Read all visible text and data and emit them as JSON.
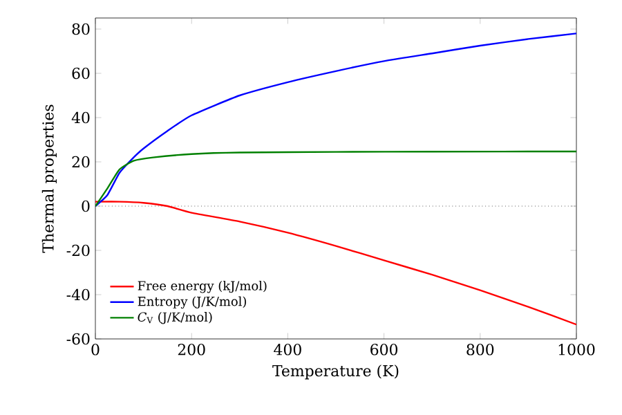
{
  "chart_data": {
    "type": "line",
    "xlabel": "Temperature (K)",
    "ylabel": "Thermal properties",
    "xlim": [
      0,
      1000
    ],
    "ylim": [
      -60,
      85
    ],
    "xticks": [
      0,
      200,
      400,
      600,
      800,
      1000
    ],
    "yticks": [
      -60,
      -40,
      -20,
      0,
      20,
      40,
      60,
      80
    ],
    "legend": "bottom left",
    "grid": false,
    "marker": "none",
    "line_style": "solid",
    "ref_lines": [
      {
        "axis": "y",
        "value": 0,
        "color": "#000000",
        "line_style": "dotted"
      }
    ],
    "series": [
      {
        "name": "Free energy (kJ/mol)",
        "color": "#ff0000",
        "x": [
          0,
          50,
          100,
          150,
          200,
          300,
          400,
          500,
          600,
          700,
          800,
          900,
          1000
        ],
        "values": [
          2,
          2,
          1.5,
          0,
          -3,
          -7,
          -12,
          -18,
          -24.5,
          -31,
          -38,
          -45.5,
          -53.5
        ]
      },
      {
        "name": "Entropy (J/K/mol)",
        "color": "#0000ff",
        "x": [
          0,
          25,
          50,
          75,
          100,
          150,
          200,
          300,
          400,
          500,
          600,
          700,
          800,
          900,
          1000
        ],
        "values": [
          0,
          5,
          15,
          21,
          26,
          34,
          41,
          50,
          56,
          61,
          65.5,
          69,
          72.5,
          75.5,
          78
        ]
      },
      {
        "name": "*C*$_{V}$ (J/K/mol)",
        "color": "#008000",
        "x": [
          0,
          25,
          50,
          80,
          120,
          200,
          300,
          500,
          700,
          1000
        ],
        "values": [
          0,
          8,
          16.5,
          20.5,
          22,
          23.5,
          24.2,
          24.5,
          24.6,
          24.7
        ]
      }
    ]
  }
}
